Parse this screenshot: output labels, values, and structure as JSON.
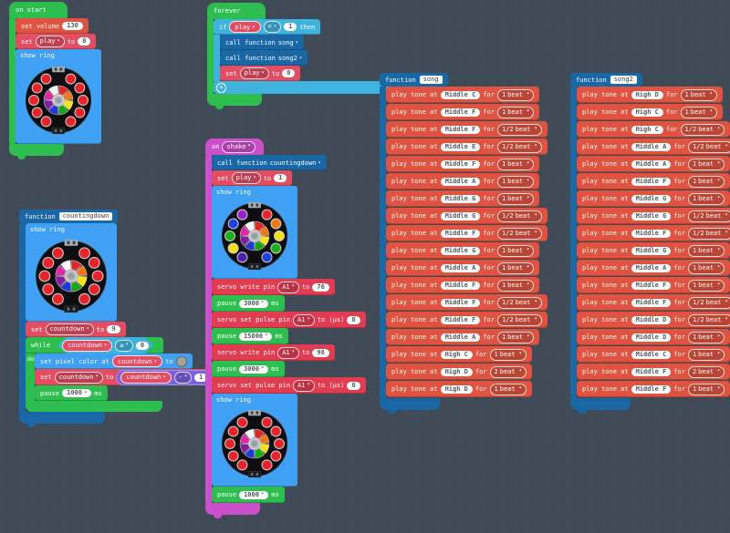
{
  "palette": {
    "loops_green": "#2ebe4f",
    "music_red": "#df5340",
    "variables_red": "#e24d62",
    "pins_crimson": "#e23c52",
    "logic_blue": "#3fb2de",
    "light_blue": "#3fa0f4",
    "functions_blue": "#1a67a5",
    "event_magenta": "#cb4ecb",
    "math_purple": "#7b61dd",
    "workspace_bg": "#414b57"
  },
  "labels": {
    "set": "set",
    "to": "to",
    "for": "for",
    "beat": "beat",
    "ms": "ms",
    "if": "if",
    "then": "then",
    "do": "do",
    "while": "while",
    "on": "on",
    "function": "function",
    "call_function": "call function",
    "play_tone_at": "play tone at",
    "show_ring": "show ring",
    "pause": "pause",
    "plus": "+",
    "set_volume": "set volume",
    "set_pixel": "set pixel color at",
    "servo_write": "servo write pin",
    "servo_pulse": "servo set pulse pin",
    "to_us": "to (µs)"
  },
  "on_start": {
    "title": "on start",
    "volume": "130",
    "var": "play",
    "value": "0"
  },
  "forever": {
    "title": "forever",
    "cond_var": "play",
    "op": "=",
    "cond_value": "1",
    "call1": "song",
    "call2": "song2",
    "var": "play",
    "value": "0"
  },
  "countingdown": {
    "name": "countingdown",
    "var": "countdown",
    "init": "9",
    "op": "≥",
    "limit": "0",
    "dec_op": "-",
    "dec_value": "1",
    "pause": "1000"
  },
  "on_shake": {
    "event": "shake",
    "call": "countingdown",
    "var": "play",
    "value": "1",
    "servo_pin": "A1",
    "servo1_value": "76",
    "servo3_value": "98",
    "pulse_value": "0",
    "pause1": "3000",
    "pause2": "15000",
    "pause3": "3000",
    "pause4": "1000"
  },
  "song": {
    "name": "song",
    "notes": [
      {
        "note": "Middle C",
        "beats": "1"
      },
      {
        "note": "Middle F",
        "beats": "1"
      },
      {
        "note": "Middle F",
        "beats": "1/2"
      },
      {
        "note": "Middle E",
        "beats": "1/2"
      },
      {
        "note": "Middle F",
        "beats": "1"
      },
      {
        "note": "Middle A",
        "beats": "1"
      },
      {
        "note": "Middle G",
        "beats": "1"
      },
      {
        "note": "Middle G",
        "beats": "1/2"
      },
      {
        "note": "Middle F",
        "beats": "1/2"
      },
      {
        "note": "Middle G",
        "beats": "1"
      },
      {
        "note": "Middle A",
        "beats": "1"
      },
      {
        "note": "Middle F",
        "beats": "1"
      },
      {
        "note": "Middle F",
        "beats": "1/2"
      },
      {
        "note": "Middle F",
        "beats": "1/2"
      },
      {
        "note": "Middle A",
        "beats": "1"
      },
      {
        "note": "High C",
        "beats": "1"
      },
      {
        "note": "High D",
        "beats": "2"
      },
      {
        "note": "High D",
        "beats": "1"
      }
    ]
  },
  "song2": {
    "name": "song2",
    "notes": [
      {
        "note": "High D",
        "beats": "1"
      },
      {
        "note": "High C",
        "beats": "1"
      },
      {
        "note": "High C",
        "beats": "1/2"
      },
      {
        "note": "Middle A",
        "beats": "1/2"
      },
      {
        "note": "Middle A",
        "beats": "1"
      },
      {
        "note": "Middle F",
        "beats": "1"
      },
      {
        "note": "Middle G",
        "beats": "1"
      },
      {
        "note": "Middle G",
        "beats": "1/2"
      },
      {
        "note": "Middle F",
        "beats": "1/2"
      },
      {
        "note": "Middle G",
        "beats": "1"
      },
      {
        "note": "Middle A",
        "beats": "1"
      },
      {
        "note": "Middle F",
        "beats": "1"
      },
      {
        "note": "Middle F",
        "beats": "1/2"
      },
      {
        "note": "Middle D",
        "beats": "1/2"
      },
      {
        "note": "Middle D",
        "beats": "1"
      },
      {
        "note": "Middle C",
        "beats": "1"
      },
      {
        "note": "Middle F",
        "beats": "2"
      },
      {
        "note": "Middle F",
        "beats": "1"
      }
    ]
  },
  "rings": {
    "wheel": [
      "#e42528",
      "#f07818",
      "#f5e31c",
      "#14a814",
      "#2038d8",
      "#801fa0",
      "#e028a8",
      "#f5f5f5"
    ],
    "all_red": [
      "#e8232a",
      "#e8232a",
      "#e8232a",
      "#e8232a",
      "#e8232a",
      "#e8232a",
      "#e8232a",
      "#e8232a",
      "#e8232a",
      "#e8232a"
    ],
    "rainbow": [
      "#e8232a",
      "#f07818",
      "#f5e018",
      "#18b018",
      "#2040e0",
      "#501fb0",
      "#f5e018",
      "#18b018",
      "#2040e0",
      "#9820c8"
    ]
  }
}
